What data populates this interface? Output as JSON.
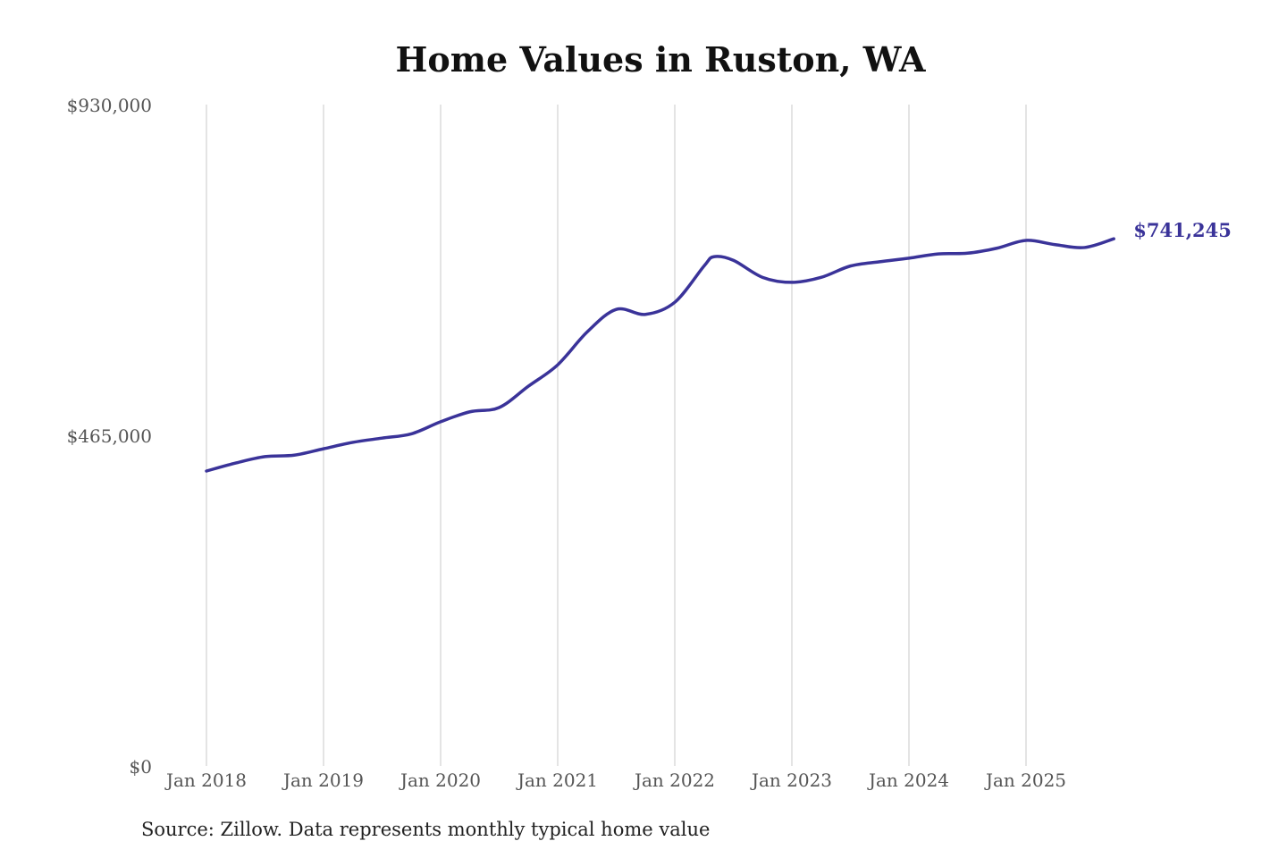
{
  "chart_data": {
    "type": "line",
    "title": "Home Values in Ruston, WA",
    "source": "Source: Zillow. Data represents monthly typical home value",
    "xlabel": "",
    "ylabel": "",
    "ylim": [
      0,
      930000
    ],
    "y_ticks": [
      0,
      465000,
      930000
    ],
    "y_tick_labels": [
      "$0",
      "$465,000",
      "$930,000"
    ],
    "x_ticks": [
      "2018-01",
      "2019-01",
      "2020-01",
      "2021-01",
      "2022-01",
      "2023-01",
      "2024-01",
      "2025-01"
    ],
    "x_tick_labels": [
      "Jan 2018",
      "Jan 2019",
      "Jan 2020",
      "Jan 2021",
      "Jan 2022",
      "Jan 2023",
      "Jan 2024",
      "Jan 2025"
    ],
    "grid": "vertical",
    "line_color": "#3a3399",
    "end_label": "$741,245",
    "x": [
      "2018-01",
      "2018-04",
      "2018-07",
      "2018-10",
      "2019-01",
      "2019-04",
      "2019-07",
      "2019-10",
      "2020-01",
      "2020-04",
      "2020-07",
      "2020-10",
      "2021-01",
      "2021-04",
      "2021-07",
      "2021-10",
      "2022-01",
      "2022-04",
      "2022-05",
      "2022-07",
      "2022-10",
      "2023-01",
      "2023-04",
      "2023-07",
      "2023-10",
      "2024-01",
      "2024-04",
      "2024-07",
      "2024-10",
      "2025-01",
      "2025-04",
      "2025-07",
      "2025-10"
    ],
    "values": [
      414700,
      426000,
      435000,
      437000,
      446000,
      455000,
      461000,
      467000,
      484000,
      498000,
      504000,
      534000,
      564000,
      610000,
      642000,
      635000,
      652000,
      703000,
      716000,
      711000,
      687000,
      680000,
      687000,
      703000,
      709000,
      714000,
      720000,
      721000,
      728000,
      739000,
      733000,
      729000,
      741245
    ]
  }
}
